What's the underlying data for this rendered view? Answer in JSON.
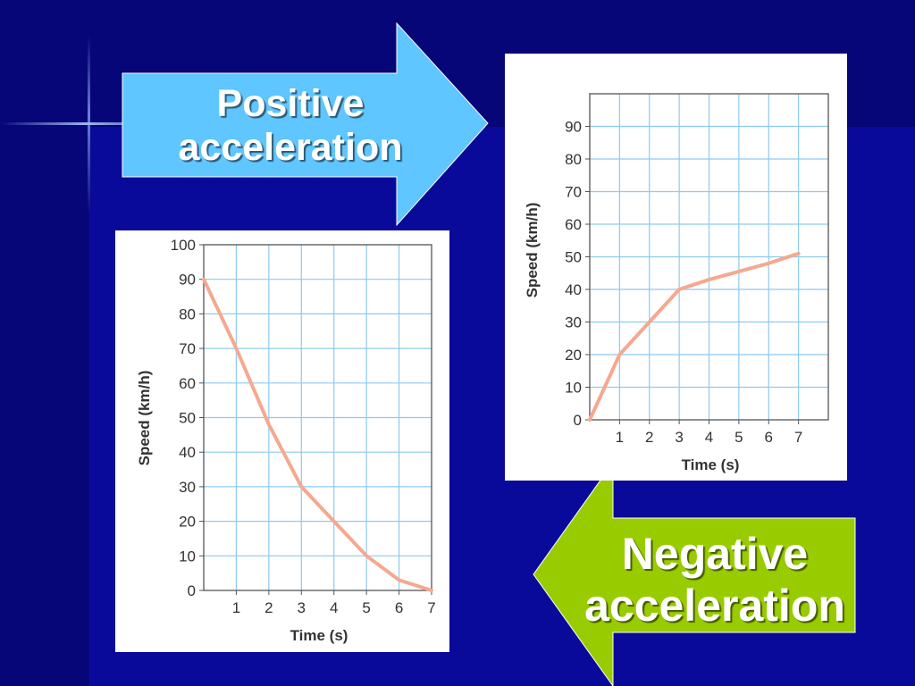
{
  "slide": {
    "positive_label": "Positive acceleration",
    "negative_label": "Negative acceleration",
    "colors": {
      "background": "#0a0a9a",
      "positive_arrow": "#5fc6ff",
      "negative_arrow": "#99cc00",
      "curve": "#f5a890",
      "grid": "#8ccbf0"
    }
  },
  "chart_data": [
    {
      "type": "line",
      "title": "",
      "xlabel": "Time (s)",
      "ylabel": "Speed (km/h)",
      "xlim": [
        0,
        7
      ],
      "ylim": [
        0,
        100
      ],
      "x_ticks": [
        "1",
        "2",
        "3",
        "4",
        "5",
        "6",
        "7"
      ],
      "y_ticks": [
        "0",
        "10",
        "20",
        "30",
        "40",
        "50",
        "60",
        "70",
        "80",
        "90",
        "100"
      ],
      "grid": true,
      "series": [
        {
          "x": [
            0,
            1,
            2,
            3,
            4,
            5,
            6,
            7
          ],
          "y": [
            90,
            70,
            48,
            30,
            20,
            10,
            3,
            0
          ]
        }
      ]
    },
    {
      "type": "line",
      "title": "",
      "xlabel": "Time (s)",
      "ylabel": "Speed (km/h)",
      "xlim": [
        0,
        8
      ],
      "ylim": [
        0,
        100
      ],
      "x_ticks": [
        "1",
        "2",
        "3",
        "4",
        "5",
        "6",
        "7"
      ],
      "y_ticks": [
        "0",
        "10",
        "20",
        "30",
        "40",
        "50",
        "60",
        "70",
        "80",
        "90"
      ],
      "grid": true,
      "series": [
        {
          "x": [
            0,
            1,
            2,
            3,
            4,
            5,
            6,
            7
          ],
          "y": [
            0,
            20,
            30,
            40,
            43,
            45.5,
            48,
            51
          ]
        }
      ]
    }
  ]
}
